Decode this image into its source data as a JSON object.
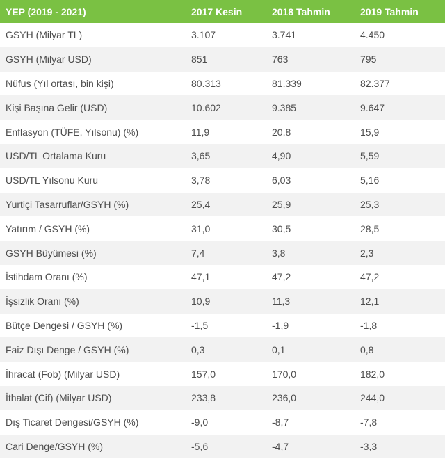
{
  "table": {
    "headers": [
      "YEP (2019 - 2021)",
      "2017 Kesin",
      "2018 Tahmin",
      "2019 Tahmin"
    ],
    "rows": [
      [
        "GSYH (Milyar TL)",
        "3.107",
        "3.741",
        "4.450"
      ],
      [
        "GSYH (Milyar USD)",
        "851",
        "763",
        "795"
      ],
      [
        "Nüfus (Yıl ortası, bin kişi)",
        "80.313",
        "81.339",
        "82.377"
      ],
      [
        "Kişi Başına Gelir (USD)",
        "10.602",
        "9.385",
        "9.647"
      ],
      [
        "Enflasyon (TÜFE, Yılsonu) (%)",
        "11,9",
        "20,8",
        "15,9"
      ],
      [
        "USD/TL Ortalama Kuru",
        "3,65",
        "4,90",
        "5,59"
      ],
      [
        "USD/TL Yılsonu Kuru",
        "3,78",
        "6,03",
        "5,16"
      ],
      [
        "Yurtiçi Tasarruflar/GSYH (%)",
        "25,4",
        "25,9",
        "25,3"
      ],
      [
        "Yatırım / GSYH (%)",
        "31,0",
        "30,5",
        "28,5"
      ],
      [
        "GSYH Büyümesi (%)",
        "7,4",
        "3,8",
        "2,3"
      ],
      [
        "İstihdam Oranı (%)",
        "47,1",
        "47,2",
        "47,2"
      ],
      [
        "İşsizlik Oranı (%)",
        "10,9",
        "11,3",
        "12,1"
      ],
      [
        "Bütçe Dengesi / GSYH (%)",
        "-1,5",
        "-1,9",
        "-1,8"
      ],
      [
        "Faiz Dışı Denge / GSYH (%)",
        "0,3",
        "0,1",
        "0,8"
      ],
      [
        "İhracat (Fob) (Milyar USD)",
        "157,0",
        "170,0",
        "182,0"
      ],
      [
        "İthalat (Cif) (Milyar USD)",
        "233,8",
        "236,0",
        "244,0"
      ],
      [
        "Dış Ticaret Dengesi/GSYH (%)",
        "-9,0",
        "-8,7",
        "-7,8"
      ],
      [
        "Cari Denge/GSYH (%)",
        "-5,6",
        "-4,7",
        "-3,3"
      ]
    ]
  },
  "colors": {
    "header_bg": "#7ac143",
    "header_text": "#ffffff",
    "row_alt_bg": "#f2f2f2",
    "cell_text": "#4d4d4d"
  }
}
